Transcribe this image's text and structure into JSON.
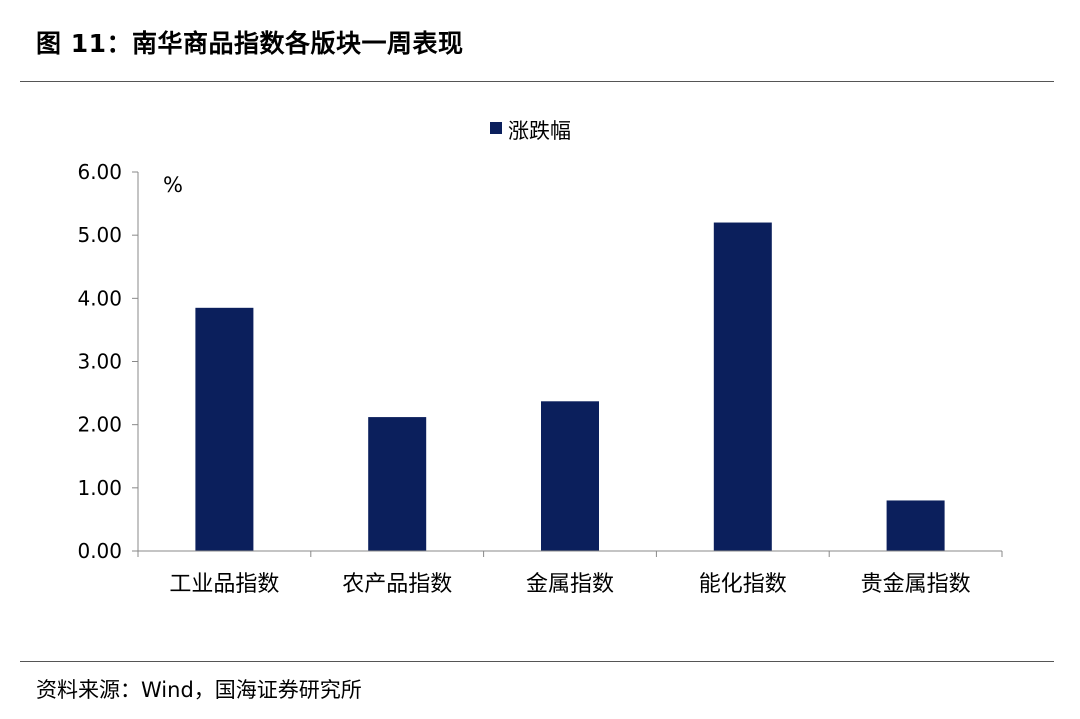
{
  "figure": {
    "title": "图 11：南华商品指数各版块一周表现",
    "source": "资料来源：Wind，国海证券研究所"
  },
  "chart_data": {
    "type": "bar",
    "categories": [
      "工业品指数",
      "农产品指数",
      "金属指数",
      "能化指数",
      "贵金属指数"
    ],
    "series": [
      {
        "name": "涨跌幅",
        "values": [
          3.85,
          2.12,
          2.37,
          5.2,
          0.8
        ],
        "color": "#0b1f5c"
      }
    ],
    "unit_label": "%",
    "y_ticks": [
      "0.00",
      "1.00",
      "2.00",
      "3.00",
      "4.00",
      "5.00",
      "6.00"
    ],
    "ylim": [
      0,
      6
    ],
    "legend_position": "top-center",
    "grid": false
  }
}
